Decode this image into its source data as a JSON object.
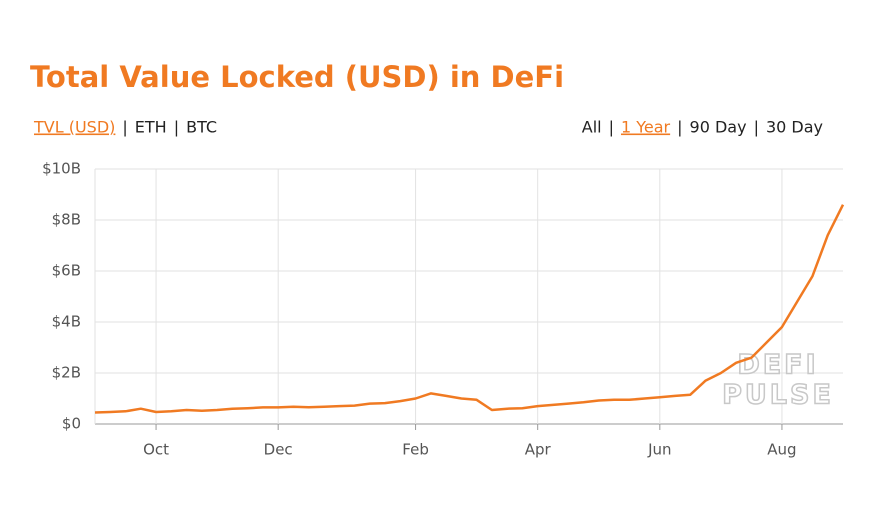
{
  "title": "Total Value Locked (USD) in DeFi",
  "unit_tabs": [
    "TVL (USD)",
    "ETH",
    "BTC"
  ],
  "range_tabs": [
    "All",
    "1 Year",
    "90 Day",
    "30 Day"
  ],
  "separator": "|",
  "watermark": [
    "DEFI",
    "PULSE"
  ],
  "chart_data": {
    "type": "line",
    "categories": [
      null,
      null,
      null,
      null,
      "Oct",
      null,
      null,
      null,
      null,
      null,
      null,
      null,
      "Dec",
      null,
      null,
      null,
      null,
      null,
      null,
      null,
      null,
      "Feb",
      null,
      null,
      null,
      null,
      null,
      null,
      null,
      "Apr",
      null,
      null,
      null,
      null,
      null,
      null,
      null,
      "Jun",
      null,
      null,
      null,
      null,
      null,
      null,
      null,
      "Aug",
      null,
      null,
      null,
      null
    ],
    "series": [
      {
        "name": "TVL (USD)",
        "color": "#f07a22",
        "values": [
          0.45,
          0.47,
          0.5,
          0.6,
          0.47,
          0.5,
          0.55,
          0.52,
          0.55,
          0.6,
          0.62,
          0.65,
          0.65,
          0.68,
          0.66,
          0.68,
          0.7,
          0.72,
          0.8,
          0.82,
          0.9,
          1.0,
          1.2,
          1.1,
          1.0,
          0.95,
          0.55,
          0.6,
          0.62,
          0.7,
          0.75,
          0.8,
          0.85,
          0.92,
          0.95,
          0.95,
          1.0,
          1.05,
          1.1,
          1.15,
          1.7,
          2.0,
          2.4,
          2.6,
          3.2,
          3.8,
          4.8,
          5.8,
          7.4,
          8.6
        ]
      }
    ],
    "ylim": [
      0,
      10
    ],
    "yticks": [
      {
        "value": 0,
        "label": "$0"
      },
      {
        "value": 2,
        "label": "$2B"
      },
      {
        "value": 4,
        "label": "$4B"
      },
      {
        "value": 6,
        "label": "$6B"
      },
      {
        "value": 8,
        "label": "$8B"
      },
      {
        "value": 10,
        "label": "$10B"
      }
    ],
    "grid": true
  }
}
